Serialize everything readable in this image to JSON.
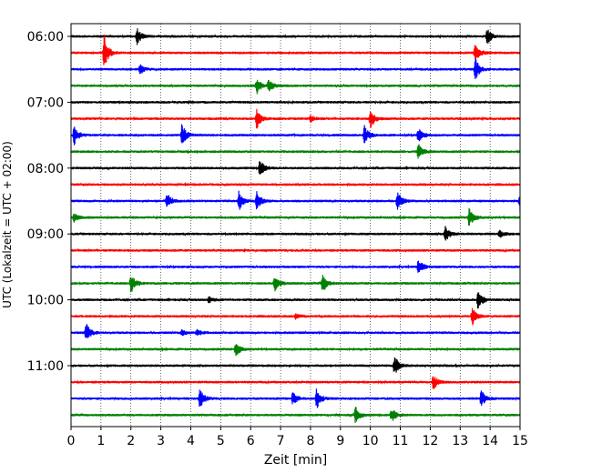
{
  "chart_data": {
    "type": "line",
    "title": "",
    "xlabel": "Zeit  [min]",
    "ylabel": "UTC (Lokalzeit = UTC + 02:00)",
    "xlim": [
      0,
      15
    ],
    "x_ticks": [
      0,
      1,
      2,
      3,
      4,
      5,
      6,
      7,
      8,
      9,
      10,
      11,
      12,
      13,
      14,
      15
    ],
    "x_tick_labels": [
      "0",
      "1",
      "2",
      "3",
      "4",
      "5",
      "6",
      "7",
      "8",
      "9",
      "10",
      "11",
      "12",
      "13",
      "14",
      "15"
    ],
    "y_tick_labels": [
      "06:00",
      "07:00",
      "08:00",
      "09:00",
      "10:00",
      "11:00"
    ],
    "grid": "vertical dotted at each minute",
    "trace_interval_min": 15,
    "start_time": "06:00",
    "colors": [
      "#000000",
      "#ff0000",
      "#0000ff",
      "#008000"
    ],
    "traces": [
      {
        "time": "06:00",
        "color": "#000000",
        "events": [
          {
            "x": 2.2,
            "amp": 1.0
          },
          {
            "x": 13.9,
            "amp": 1.0
          }
        ]
      },
      {
        "time": "06:15",
        "color": "#ff0000",
        "events": [
          {
            "x": 1.1,
            "amp": 2.2
          },
          {
            "x": 13.5,
            "amp": 1.3
          }
        ]
      },
      {
        "time": "06:30",
        "color": "#0000ff",
        "events": [
          {
            "x": 2.3,
            "amp": 0.6
          },
          {
            "x": 13.5,
            "amp": 1.4
          }
        ]
      },
      {
        "time": "06:45",
        "color": "#008000",
        "events": [
          {
            "x": 6.2,
            "amp": 1.0
          },
          {
            "x": 6.6,
            "amp": 0.8
          }
        ]
      },
      {
        "time": "07:00",
        "color": "#000000",
        "events": []
      },
      {
        "time": "07:15",
        "color": "#ff0000",
        "events": [
          {
            "x": 6.2,
            "amp": 1.2
          },
          {
            "x": 8.0,
            "amp": 0.4
          },
          {
            "x": 10.0,
            "amp": 1.2
          }
        ]
      },
      {
        "time": "07:30",
        "color": "#0000ff",
        "events": [
          {
            "x": 0.1,
            "amp": 1.2
          },
          {
            "x": 3.7,
            "amp": 1.4
          },
          {
            "x": 9.8,
            "amp": 1.2
          },
          {
            "x": 11.6,
            "amp": 0.9
          }
        ]
      },
      {
        "time": "07:45",
        "color": "#008000",
        "events": [
          {
            "x": 11.6,
            "amp": 1.0
          }
        ]
      },
      {
        "time": "08:00",
        "color": "#000000",
        "events": [
          {
            "x": 6.3,
            "amp": 1.1
          }
        ]
      },
      {
        "time": "08:15",
        "color": "#ff0000",
        "events": []
      },
      {
        "time": "08:30",
        "color": "#0000ff",
        "events": [
          {
            "x": 3.2,
            "amp": 1.1
          },
          {
            "x": 5.6,
            "amp": 1.3
          },
          {
            "x": 6.2,
            "amp": 1.2
          },
          {
            "x": 10.9,
            "amp": 1.2
          },
          {
            "x": 15.0,
            "amp": 1.4
          }
        ]
      },
      {
        "time": "08:45",
        "color": "#008000",
        "events": [
          {
            "x": 0.1,
            "amp": 0.5
          },
          {
            "x": 13.3,
            "amp": 1.2
          }
        ]
      },
      {
        "time": "09:00",
        "color": "#000000",
        "events": [
          {
            "x": 12.5,
            "amp": 1.0
          },
          {
            "x": 14.3,
            "amp": 0.5
          }
        ]
      },
      {
        "time": "09:15",
        "color": "#ff0000",
        "events": []
      },
      {
        "time": "09:30",
        "color": "#0000ff",
        "events": [
          {
            "x": 11.6,
            "amp": 1.0
          }
        ]
      },
      {
        "time": "09:45",
        "color": "#008000",
        "events": [
          {
            "x": 2.0,
            "amp": 1.2
          },
          {
            "x": 6.8,
            "amp": 1.2
          },
          {
            "x": 8.4,
            "amp": 1.2
          }
        ]
      },
      {
        "time": "10:00",
        "color": "#000000",
        "events": [
          {
            "x": 4.6,
            "amp": 0.4
          },
          {
            "x": 13.6,
            "amp": 1.3
          }
        ]
      },
      {
        "time": "10:15",
        "color": "#ff0000",
        "events": [
          {
            "x": 7.5,
            "amp": 0.3
          },
          {
            "x": 13.4,
            "amp": 1.1
          }
        ]
      },
      {
        "time": "10:30",
        "color": "#0000ff",
        "events": [
          {
            "x": 0.5,
            "amp": 1.2
          },
          {
            "x": 3.7,
            "amp": 0.4
          },
          {
            "x": 4.2,
            "amp": 0.4
          }
        ]
      },
      {
        "time": "10:45",
        "color": "#008000",
        "events": [
          {
            "x": 5.5,
            "amp": 0.9
          }
        ]
      },
      {
        "time": "11:00",
        "color": "#000000",
        "events": [
          {
            "x": 10.8,
            "amp": 1.3
          }
        ]
      },
      {
        "time": "11:15",
        "color": "#ff0000",
        "events": [
          {
            "x": 12.1,
            "amp": 1.0
          }
        ]
      },
      {
        "time": "11:30",
        "color": "#0000ff",
        "events": [
          {
            "x": 4.3,
            "amp": 1.2
          },
          {
            "x": 7.4,
            "amp": 0.9
          },
          {
            "x": 8.2,
            "amp": 1.3
          },
          {
            "x": 13.7,
            "amp": 1.2
          }
        ]
      },
      {
        "time": "11:45",
        "color": "#008000",
        "events": [
          {
            "x": 9.5,
            "amp": 1.0
          },
          {
            "x": 10.7,
            "amp": 0.9
          }
        ]
      }
    ]
  }
}
